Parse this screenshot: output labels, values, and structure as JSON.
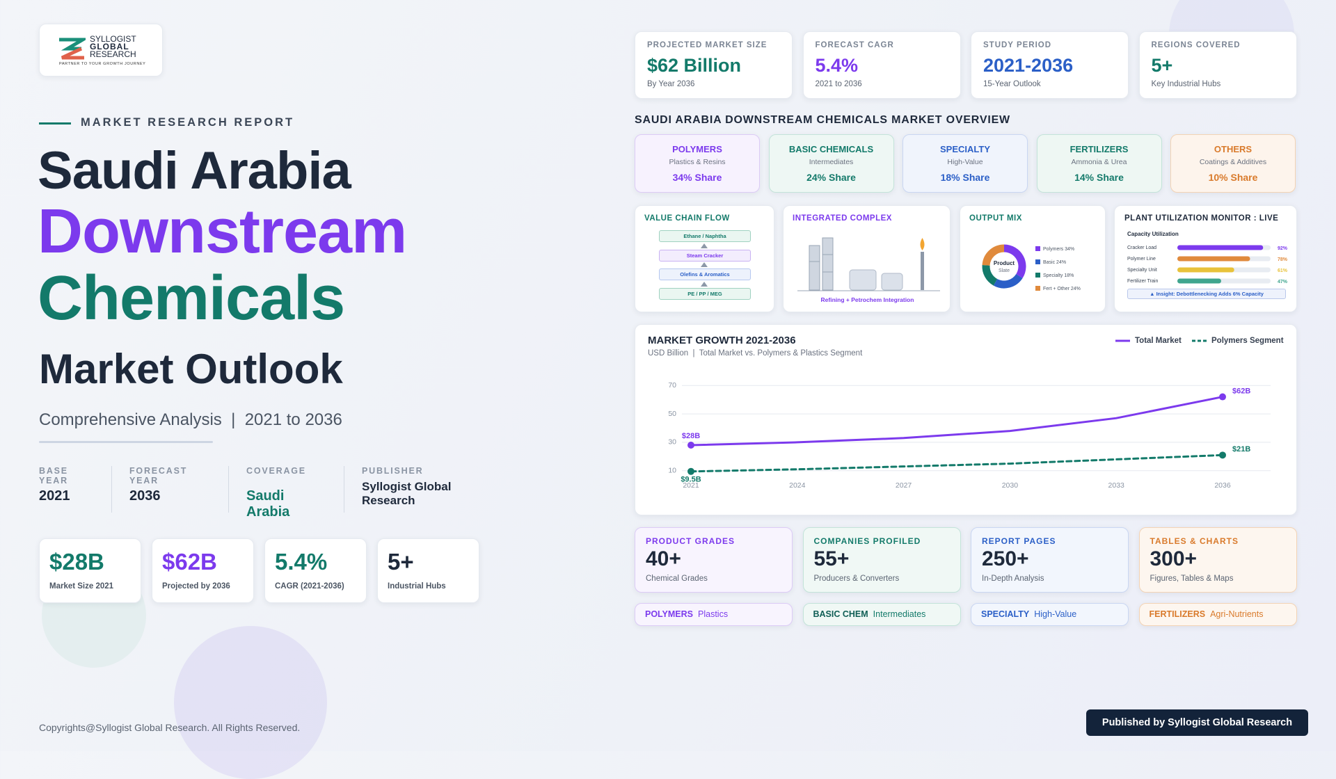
{
  "logo": {
    "line1": "SYLLOGIST",
    "line2": "GLOBAL",
    "line3": "RESEARCH",
    "tagline": "PARTNER TO YOUR GROWTH JOURNEY"
  },
  "hero": {
    "eyebrow": "MARKET RESEARCH REPORT",
    "title1": "Saudi Arabia",
    "title2": "Downstream",
    "title3": "Chemicals",
    "title4": "Market Outlook",
    "subtitle": "Comprehensive Analysis  |  2021 to 2036"
  },
  "meta": [
    {
      "label": "BASE YEAR",
      "value": "2021"
    },
    {
      "label": "FORECAST YEAR",
      "value": "2036"
    },
    {
      "label": "COVERAGE",
      "value": "Saudi Arabia"
    },
    {
      "label": "PUBLISHER",
      "value": "Syllogist Global Research"
    }
  ],
  "hero_stats": [
    {
      "value": "$28B",
      "label": "Market Size 2021"
    },
    {
      "value": "$62B",
      "label": "Projected by 2036"
    },
    {
      "value": "5.4%",
      "label": "CAGR (2021-2036)"
    },
    {
      "value": "5+",
      "label": "Industrial Hubs"
    }
  ],
  "kpis": [
    {
      "label": "PROJECTED MARKET SIZE",
      "value": "$62 Billion",
      "note": "By Year 2036"
    },
    {
      "label": "FORECAST CAGR",
      "value": "5.4%",
      "note": "2021 to 2036"
    },
    {
      "label": "STUDY PERIOD",
      "value": "2021-2036",
      "note": "15-Year Outlook"
    },
    {
      "label": "REGIONS COVERED",
      "value": "5+",
      "note": "Key Industrial Hubs"
    }
  ],
  "overview": {
    "title": "SAUDI ARABIA DOWNSTREAM CHEMICALS MARKET OVERVIEW",
    "segments": [
      {
        "name": "POLYMERS",
        "desc": "Plastics & Resins",
        "share": "34% Share"
      },
      {
        "name": "BASIC CHEMICALS",
        "desc": "Intermediates",
        "share": "24% Share"
      },
      {
        "name": "SPECIALTY",
        "desc": "High-Value",
        "share": "18% Share"
      },
      {
        "name": "FERTILIZERS",
        "desc": "Ammonia & Urea",
        "share": "14% Share"
      },
      {
        "name": "OTHERS",
        "desc": "Coatings & Additives",
        "share": "10% Share"
      }
    ]
  },
  "value_chain": {
    "title": "VALUE CHAIN FLOW",
    "steps": [
      "Ethane / Naphtha",
      "Steam Cracker",
      "Olefins & Aromatics",
      "PE / PP / MEG"
    ]
  },
  "complex": {
    "title": "INTEGRATED COMPLEX",
    "caption": "Refining + Petrochem Integration"
  },
  "output_mix": {
    "title": "OUTPUT MIX",
    "center1": "Product",
    "center2": "Slate",
    "categories": [
      "Polymers 34%",
      "Basic 24%",
      "Specialty 18%",
      "Fert + Other 24%"
    ],
    "values": [
      34,
      24,
      18,
      24
    ],
    "colors": [
      "#7c3aed",
      "#2b5fc7",
      "#137a6a",
      "#e08a3c"
    ]
  },
  "utilization": {
    "title": "PLANT UTILIZATION MONITOR : LIVE",
    "subtitle": "Capacity Utilization",
    "categories": [
      "Cracker Load",
      "Polymer Line",
      "Specialty Unit",
      "Fertilizer Train"
    ],
    "values": [
      92,
      78,
      61,
      47
    ],
    "value_labels": [
      "92%",
      "78%",
      "61%",
      "47%"
    ],
    "colors": [
      "#7c3aed",
      "#e08a3c",
      "#e8c23a",
      "#3fa58e"
    ],
    "xlim": [
      0,
      100
    ],
    "insight": "▲ Insight: Debottlenecking Adds 6% Capacity"
  },
  "growth_chart": {
    "type": "line",
    "title": "MARKET GROWTH 2021-2036",
    "subtitle": "USD Billion  |  Total Market vs. Polymers & Plastics Segment",
    "x": [
      2021,
      2024,
      2027,
      2030,
      2033,
      2036
    ],
    "xlim": [
      2021,
      2036
    ],
    "xticks": [
      2021,
      2024,
      2027,
      2030,
      2033,
      2036
    ],
    "ylim": [
      5,
      75
    ],
    "yticks": [
      10,
      30,
      50,
      70
    ],
    "grid": true,
    "series": [
      {
        "name": "Total Market",
        "color": "#7c3aed",
        "dashed": false,
        "values": [
          28,
          30,
          33,
          38,
          47,
          62
        ],
        "value_labels": [
          "$28B",
          null,
          null,
          null,
          null,
          "$62B"
        ]
      },
      {
        "name": "Polymers Segment",
        "color": "#137a6a",
        "dashed": true,
        "values": [
          9.5,
          11,
          13,
          15,
          18,
          21
        ],
        "value_labels": [
          "$9.5B",
          null,
          null,
          null,
          null,
          "$21B"
        ]
      }
    ]
  },
  "bottom_stats": [
    {
      "label": "PRODUCT GRADES",
      "value": "40+",
      "note": "Chemical Grades"
    },
    {
      "label": "COMPANIES PROFILED",
      "value": "55+",
      "note": "Producers & Converters"
    },
    {
      "label": "REPORT PAGES",
      "value": "250+",
      "note": "In-Depth Analysis"
    },
    {
      "label": "TABLES & CHARTS",
      "value": "300+",
      "note": "Figures, Tables & Maps"
    }
  ],
  "tags": [
    {
      "name": "POLYMERS",
      "desc": "Plastics"
    },
    {
      "name": "BASIC CHEM",
      "desc": "Intermediates"
    },
    {
      "name": "SPECIALTY",
      "desc": "High-Value"
    },
    {
      "name": "FERTILIZERS",
      "desc": "Agri-Nutrients"
    }
  ],
  "footer": {
    "copyright": "Copyrights@Syllogist Global Research. All Rights Reserved.",
    "badge": "Published by Syllogist Global Research"
  }
}
